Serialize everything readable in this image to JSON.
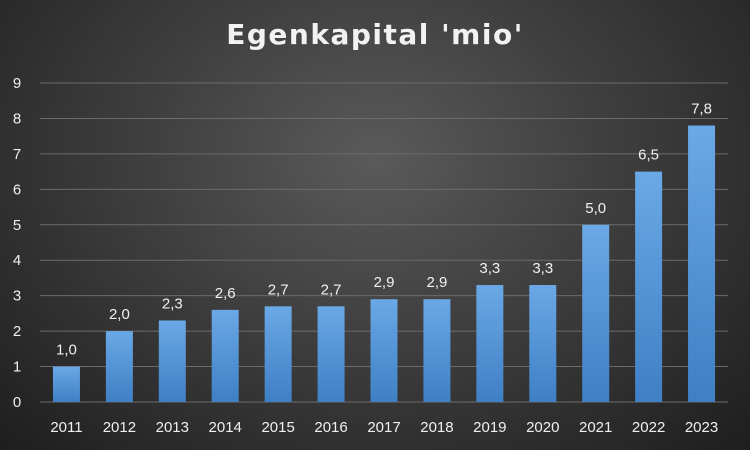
{
  "chart_data": {
    "type": "bar",
    "title": "Egenkapital 'mio'",
    "categories": [
      "2011",
      "2012",
      "2013",
      "2014",
      "2015",
      "2016",
      "2017",
      "2018",
      "2019",
      "2020",
      "2021",
      "2022",
      "2023"
    ],
    "values": [
      1.0,
      2.0,
      2.3,
      2.6,
      2.7,
      2.7,
      2.9,
      2.9,
      3.3,
      3.3,
      5.0,
      6.5,
      7.8
    ],
    "data_labels": [
      "1,0",
      "2,0",
      "2,3",
      "2,6",
      "2,7",
      "2,7",
      "2,9",
      "2,9",
      "3,3",
      "3,3",
      "5,0",
      "6,5",
      "7,8"
    ],
    "yticks": [
      "0",
      "1",
      "2",
      "3",
      "4",
      "5",
      "6",
      "7",
      "8",
      "9"
    ],
    "ylim": [
      0,
      9
    ],
    "grid": true,
    "legend": "none",
    "colors": {
      "bar_top": "#6aa8e6",
      "bar_bottom": "#3f7fc4",
      "grid": "#6b6b6b",
      "text": "#f0f0f0"
    }
  }
}
